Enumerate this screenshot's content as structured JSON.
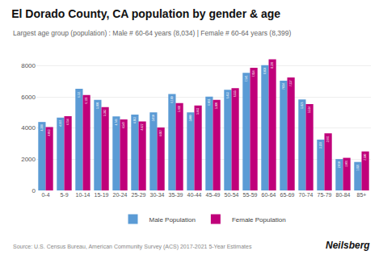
{
  "chart_data": {
    "type": "bar",
    "title": "El Dorado County, CA population by gender & age",
    "subtitle": "Largest age group (population) : Male # 60-64 years (8,034) | Female # 60-64 years (8,399)",
    "annotations": [
      "Source: U.S. Census Bureau, American Community Survey (ACS) 2017-2021 5-Year Estimates",
      "Neilsberg"
    ],
    "categories": [
      "0-4",
      "5-9",
      "10-14",
      "15-19",
      "20-24",
      "25-29",
      "30-34",
      "35-39",
      "40-44",
      "45-49",
      "50-54",
      "55-59",
      "60-64",
      "65-69",
      "70-74",
      "75-79",
      "80-84",
      "85+"
    ],
    "series": [
      {
        "name": "Male Population",
        "color": "#5b9bd5",
        "values": [
          4388,
          4667,
          6511,
          5808,
          4746,
          4863,
          5010,
          6180,
          5000,
          6018,
          6453,
          7541,
          8034,
          7034,
          5826,
          3259,
          2010,
          1826
        ],
        "value_labels": [
          "4,388",
          "4,667",
          "6,511",
          "5,808",
          "4,746",
          "4,863",
          "5,010",
          "6,180",
          "5,000",
          "6,018",
          "6,453",
          "7,541",
          "8,034",
          "7,034",
          "5,826",
          "3,259",
          "2,010",
          "1,826"
        ]
      },
      {
        "name": "Female Population",
        "color": "#c0007a",
        "values": [
          4063,
          4754,
          6118,
          5343,
          4549,
          4422,
          4037,
          5602,
          5443,
          5809,
          6555,
          7856,
          8399,
          7237,
          5534,
          3661,
          2091,
          2500
        ],
        "value_labels": [
          "4,063",
          "4,754",
          "6,118",
          "5,343",
          "4,549",
          "4,422",
          "4,037",
          "5,602",
          "5,443",
          "5,809",
          "6,555",
          "7,856",
          "8,399",
          "7,237",
          "5,534",
          "3,661",
          "2,091",
          "2,500"
        ]
      }
    ],
    "ylim": [
      0,
      9000
    ],
    "yticks": [
      0,
      2000,
      4000,
      6000,
      8000
    ],
    "grid": true,
    "legend": "bottom",
    "data_labels": true
  }
}
